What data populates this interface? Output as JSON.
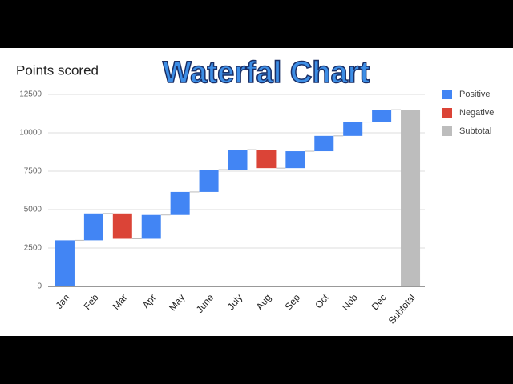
{
  "chart_data": {
    "type": "waterfall",
    "title": "Waterfal Chart",
    "y_label": "Points scored",
    "categories": [
      "Jan",
      "Feb",
      "Mar",
      "Apr",
      "May",
      "June",
      "July",
      "Aug",
      "Sep",
      "Oct",
      "Nob",
      "Dec",
      "Subtotal"
    ],
    "values": [
      3000,
      1750,
      -1650,
      1550,
      1500,
      1450,
      1300,
      -1200,
      1100,
      1000,
      900,
      800,
      11500
    ],
    "legend": [
      {
        "name": "Positive",
        "color": "#4285f4"
      },
      {
        "name": "Negative",
        "color": "#db4437"
      },
      {
        "name": "Subtotal",
        "color": "#bdbdbd"
      }
    ],
    "ylim": [
      0,
      12500
    ],
    "yticks": [
      0,
      2500,
      5000,
      7500,
      10000,
      12500
    ],
    "grid": true
  }
}
